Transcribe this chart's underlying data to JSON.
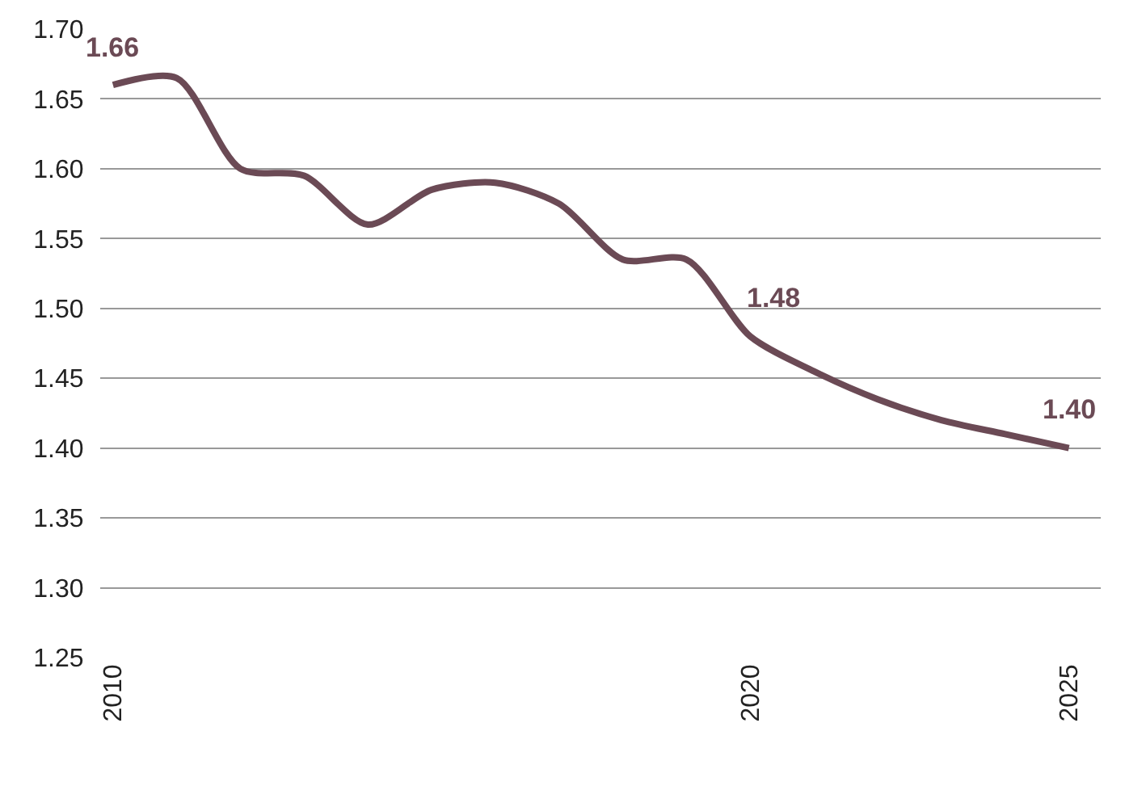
{
  "chart_data": {
    "type": "line",
    "x": [
      2010,
      2011,
      2012,
      2013,
      2014,
      2015,
      2016,
      2017,
      2018,
      2019,
      2020,
      2021,
      2022,
      2023,
      2024,
      2025
    ],
    "series": [
      {
        "color": "#6b4a55",
        "values": [
          1.66,
          1.665,
          1.6,
          1.595,
          1.56,
          1.585,
          1.59,
          1.575,
          1.535,
          1.535,
          1.48,
          1.455,
          1.435,
          1.42,
          1.41,
          1.4
        ],
        "value_labels": [
          "1.66",
          null,
          null,
          null,
          null,
          null,
          null,
          null,
          null,
          null,
          "1.48",
          null,
          null,
          null,
          null,
          "1.40"
        ]
      }
    ],
    "xlim": [
      2009.8,
      2025.5
    ],
    "xticks": [
      2010,
      2020,
      2025
    ],
    "ylim": [
      1.25,
      1.7
    ],
    "yticks": [
      {
        "value": 1.25,
        "label": "1.25"
      },
      {
        "value": 1.3,
        "label": "1.30"
      },
      {
        "value": 1.35,
        "label": "1.35"
      },
      {
        "value": 1.4,
        "label": "1.40"
      },
      {
        "value": 1.45,
        "label": "1.45"
      },
      {
        "value": 1.5,
        "label": "1.50"
      },
      {
        "value": 1.55,
        "label": "1.55"
      },
      {
        "value": 1.6,
        "label": "1.60"
      },
      {
        "value": 1.65,
        "label": "1.65"
      },
      {
        "value": 1.7,
        "label": "1.70"
      }
    ],
    "grid": "y",
    "marker": "none",
    "line_style": "solid"
  }
}
